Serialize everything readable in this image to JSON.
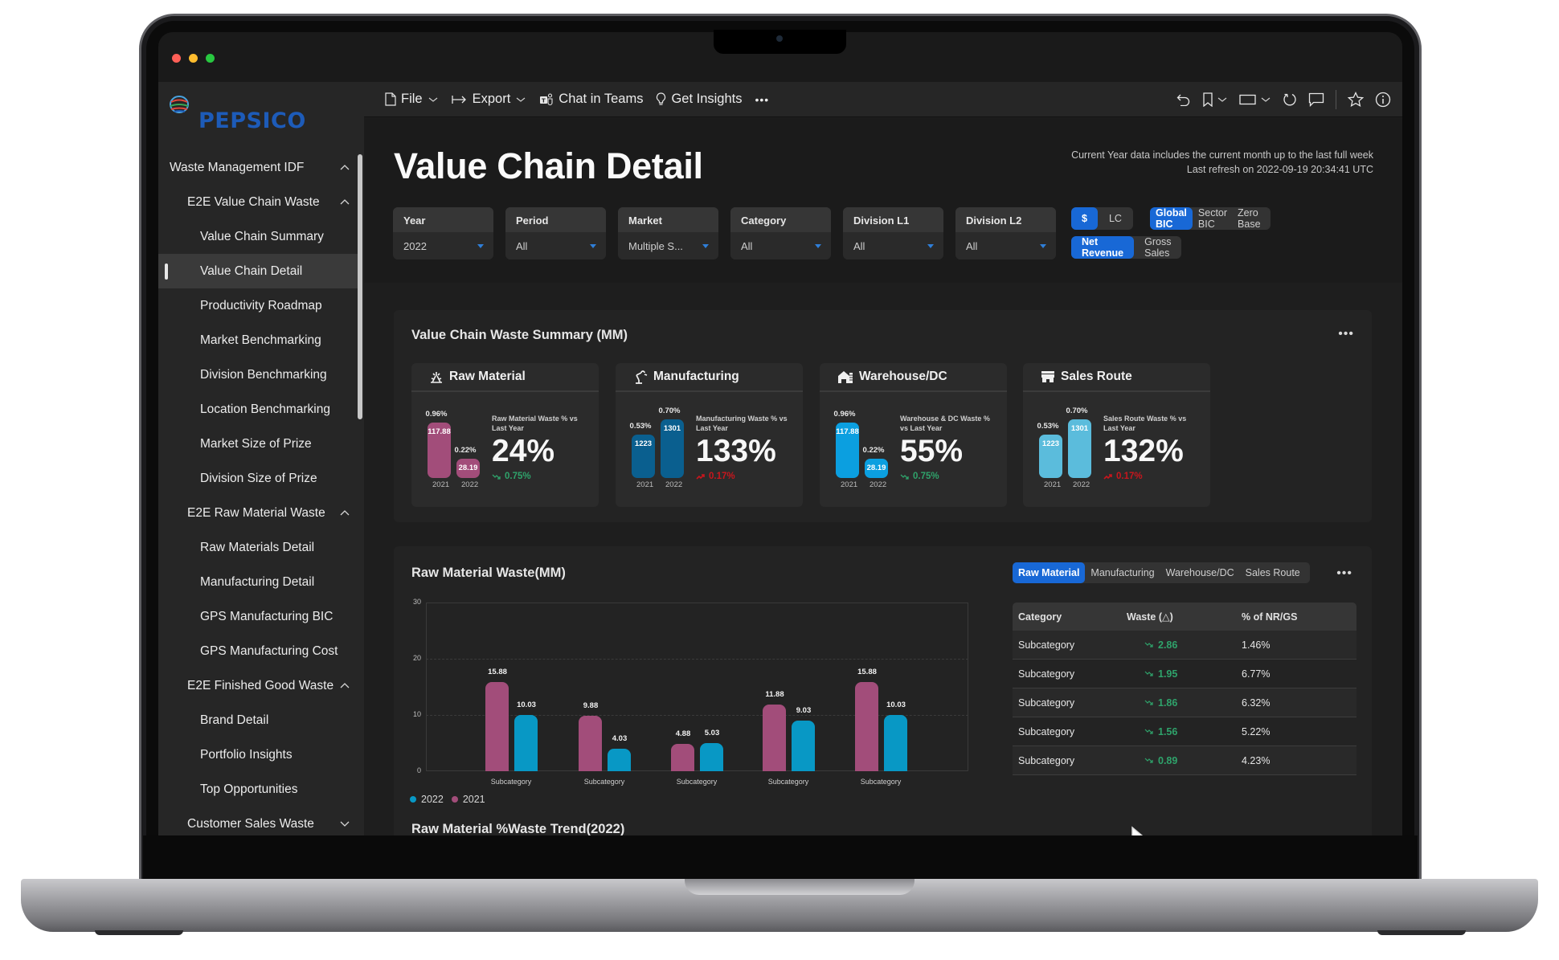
{
  "window": {
    "traffic_lights": [
      "#ff5f57",
      "#febc2e",
      "#28c840"
    ]
  },
  "brand": {
    "name": "PEPSICO",
    "color": "#1d5bb8"
  },
  "sidebar": {
    "items": [
      {
        "label": "Waste Management IDF",
        "level": 0,
        "chevron": "up"
      },
      {
        "label": "E2E Value Chain Waste",
        "level": 1,
        "chevron": "up"
      },
      {
        "label": "Value Chain Summary",
        "level": 2
      },
      {
        "label": "Value Chain Detail",
        "level": 2,
        "active": true
      },
      {
        "label": "Productivity Roadmap",
        "level": 2
      },
      {
        "label": "Market Benchmarking",
        "level": 2
      },
      {
        "label": "Division Benchmarking",
        "level": 2
      },
      {
        "label": "Location Benchmarking",
        "level": 2
      },
      {
        "label": "Market Size of Prize",
        "level": 2
      },
      {
        "label": "Division Size of Prize",
        "level": 2
      },
      {
        "label": "E2E Raw Material Waste",
        "level": 1,
        "chevron": "up"
      },
      {
        "label": "Raw Materials Detail",
        "level": 2
      },
      {
        "label": "Manufacturing Detail",
        "level": 2
      },
      {
        "label": "GPS Manufacturing BIC",
        "level": 2
      },
      {
        "label": "GPS Manufacturing Cost",
        "level": 2
      },
      {
        "label": "E2E Finished Good Waste",
        "level": 1,
        "chevron": "up"
      },
      {
        "label": "Brand Detail",
        "level": 2
      },
      {
        "label": "Portfolio Insights",
        "level": 2
      },
      {
        "label": "Top Opportunities",
        "level": 2
      },
      {
        "label": "Customer Sales Waste",
        "level": 1,
        "chevron": "down"
      }
    ]
  },
  "toolbar": {
    "file": "File",
    "export": "Export",
    "chat_in_teams": "Chat in Teams",
    "get_insights": "Get Insights",
    "more": "•••"
  },
  "header": {
    "title": "Value Chain Detail",
    "note_line1": "Current Year data includes the current month up to the last full week",
    "note_line2": "Last refresh on 2022-09-19 20:34:41 UTC"
  },
  "filters": [
    {
      "label": "Year",
      "value": "2022"
    },
    {
      "label": "Period",
      "value": "All"
    },
    {
      "label": "Market",
      "value": "Multiple S..."
    },
    {
      "label": "Category",
      "value": "All"
    },
    {
      "label": "Division L1",
      "value": "All"
    },
    {
      "label": "Division L2",
      "value": "All"
    }
  ],
  "toggles": {
    "currency": {
      "options": [
        "$",
        "LC"
      ],
      "selected": "$"
    },
    "benchmark": {
      "options": [
        "Global BIC",
        "Sector BIC",
        "Zero Base"
      ],
      "selected": "Global BIC"
    },
    "measure": {
      "options": [
        "Net Revenue",
        "Gross Sales"
      ],
      "selected": "Net Revenue"
    }
  },
  "summary": {
    "title": "Value Chain Waste Summary (MM)",
    "more": "•••",
    "cards": [
      {
        "title": "Raw Material",
        "icon": "raw-material-icon",
        "y2021": {
          "value": "117.88",
          "pct": "0.96%"
        },
        "y2022": {
          "value": "28.19",
          "pct": "0.22%"
        },
        "year_labels": [
          "2021",
          "2022"
        ],
        "subtitle": "Raw Material Waste % vs Last Year",
        "big": "24%",
        "delta": "0.75%",
        "delta_dir": "down",
        "color": "#a24d7a"
      },
      {
        "title": "Manufacturing",
        "icon": "robot-arm-icon",
        "y2021": {
          "value": "1223",
          "pct": "0.53%"
        },
        "y2022": {
          "value": "1301",
          "pct": "0.70%"
        },
        "year_labels": [
          "2021",
          "2022"
        ],
        "subtitle": "Manufacturing Waste % vs Last Year",
        "big": "133%",
        "delta": "0.17%",
        "delta_dir": "up",
        "color": "#0a5f8f"
      },
      {
        "title": "Warehouse/DC",
        "icon": "warehouse-icon",
        "y2021": {
          "value": "117.88",
          "pct": "0.96%"
        },
        "y2022": {
          "value": "28.19",
          "pct": "0.22%"
        },
        "year_labels": [
          "2021",
          "2022"
        ],
        "subtitle": "Warehouse & DC Waste % vs Last Year",
        "big": "55%",
        "delta": "0.75%",
        "delta_dir": "down",
        "color": "#0b9fe0"
      },
      {
        "title": "Sales Route",
        "icon": "store-icon",
        "y2021": {
          "value": "1223",
          "pct": "0.53%"
        },
        "y2022": {
          "value": "1301",
          "pct": "0.70%"
        },
        "year_labels": [
          "2021",
          "2022"
        ],
        "subtitle": "Sales Route Waste % vs Last Year",
        "big": "132%",
        "delta": "0.17%",
        "delta_dir": "up",
        "color": "#5bbcdc"
      }
    ]
  },
  "waste_panel": {
    "title": "Raw Material Waste(MM)",
    "tabs": [
      "Raw Material",
      "Manufacturing",
      "Warehouse/DC",
      "Sales Route"
    ],
    "selected_tab": "Raw Material",
    "more": "•••",
    "table": {
      "headers": [
        "Category",
        "Waste (△)",
        "% of NR/GS"
      ],
      "rows": [
        [
          "Subcategory",
          "2.86",
          "1.46%"
        ],
        [
          "Subcategory",
          "1.95",
          "6.77%"
        ],
        [
          "Subcategory",
          "1.86",
          "6.32%"
        ],
        [
          "Subcategory",
          "1.56",
          "5.22%"
        ],
        [
          "Subcategory",
          "0.89",
          "4.23%"
        ]
      ]
    },
    "trend_title": "Raw Material %Waste Trend(2022)"
  },
  "chart_data": {
    "type": "bar",
    "title": "Raw Material Waste(MM)",
    "xlabel": "",
    "ylabel": "",
    "categories": [
      "Subcategory",
      "Subcategory",
      "Subcategory",
      "Subcategory",
      "Subcategory"
    ],
    "series": [
      {
        "name": "2021",
        "color": "#a24d7a",
        "values": [
          15.88,
          9.88,
          4.88,
          11.88,
          15.88
        ]
      },
      {
        "name": "2022",
        "color": "#0898c5",
        "values": [
          10.03,
          4.03,
          5.03,
          9.03,
          10.03
        ]
      }
    ],
    "yticks": [
      0,
      10,
      20,
      30
    ],
    "ylim": [
      0,
      30
    ],
    "grid": true,
    "legend": [
      "2022",
      "2021"
    ],
    "legend_position": "bottom-left"
  },
  "colors": {
    "accent": "#1868d6",
    "positive": "#2fa36b",
    "negative": "#c8161d"
  }
}
